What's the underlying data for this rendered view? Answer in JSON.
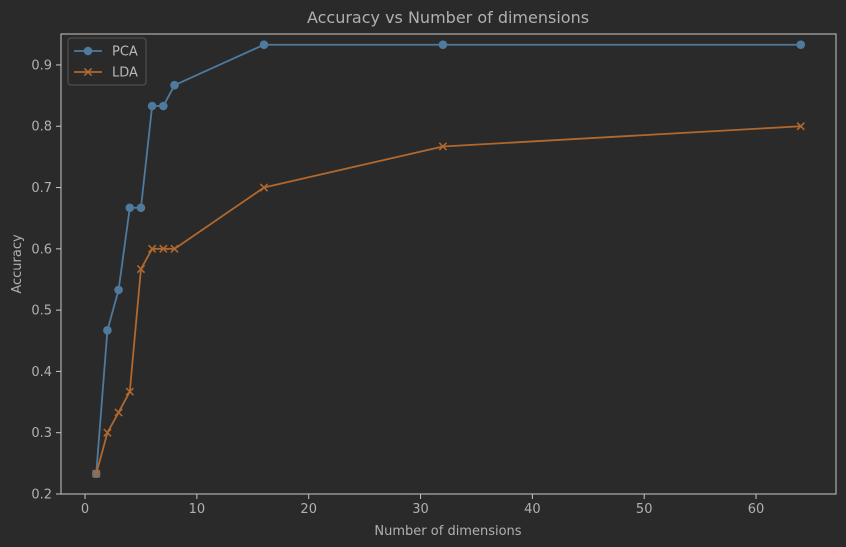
{
  "chart_data": {
    "type": "line",
    "title": "Accuracy vs Number of dimensions",
    "xlabel": "Number of dimensions",
    "ylabel": "Accuracy",
    "xlim": [
      -2.15,
      67.15
    ],
    "ylim": [
      0.2,
      0.9505
    ],
    "xticks": [
      0,
      10,
      20,
      30,
      40,
      50,
      60
    ],
    "yticks": [
      0.2,
      0.3,
      0.4,
      0.5,
      0.6,
      0.7,
      0.8,
      0.9
    ],
    "grid": false,
    "legend_position": "top-left",
    "series": [
      {
        "name": "PCA",
        "marker": "circle",
        "color": "#4e7a9e",
        "x": [
          1,
          2,
          3,
          4,
          5,
          6,
          7,
          8,
          16,
          32,
          64
        ],
        "y": [
          0.233,
          0.467,
          0.533,
          0.667,
          0.667,
          0.833,
          0.833,
          0.867,
          0.933,
          0.933,
          0.933
        ]
      },
      {
        "name": "LDA",
        "marker": "x",
        "color": "#b0682e",
        "x": [
          1,
          2,
          3,
          4,
          5,
          6,
          7,
          8,
          16,
          32,
          64
        ],
        "y": [
          0.233,
          0.3,
          0.333,
          0.367,
          0.567,
          0.6,
          0.6,
          0.6,
          0.7,
          0.767,
          0.8
        ]
      }
    ]
  },
  "colors": {
    "background": "#2a2a2a",
    "axes_edge": "#c8c8c8",
    "text": "#b0b0b0"
  }
}
